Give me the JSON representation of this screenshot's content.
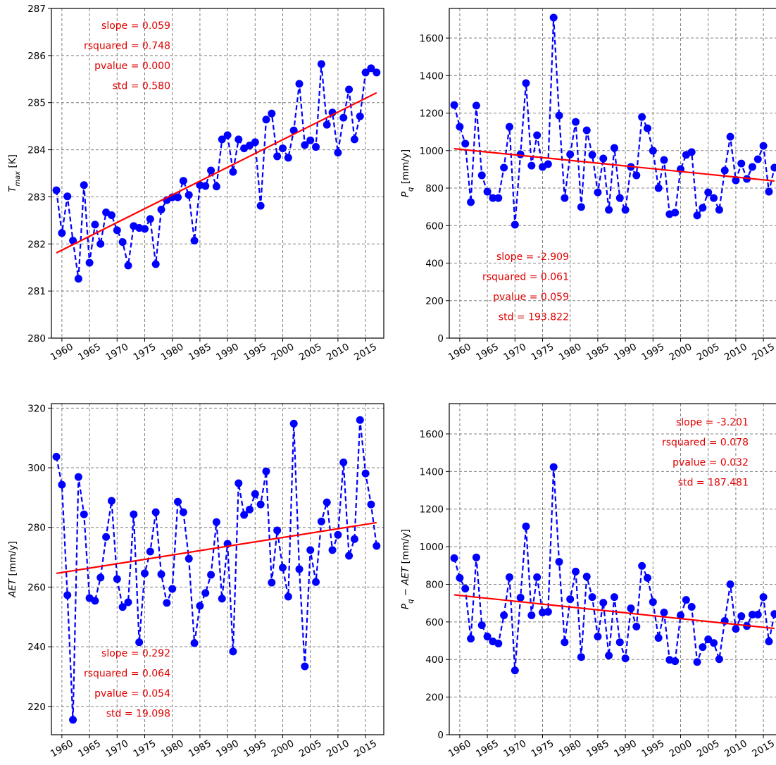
{
  "chart_data": [
    {
      "type": "line",
      "ylabel": [
        {
          "text": "T",
          "style": "italic"
        },
        {
          "text": "max",
          "style": "sub"
        },
        {
          "text": " [K]",
          "style": "normal"
        }
      ],
      "annotations": [
        "slope = 0.059",
        "rsquared = 0.748",
        "pvalue = 0.000",
        "std = 0.580"
      ],
      "x": [
        1959,
        1960,
        1961,
        1962,
        1963,
        1964,
        1965,
        1966,
        1967,
        1968,
        1969,
        1970,
        1971,
        1972,
        1973,
        1974,
        1975,
        1976,
        1977,
        1978,
        1979,
        1980,
        1981,
        1982,
        1983,
        1984,
        1985,
        1986,
        1987,
        1988,
        1989,
        1990,
        1991,
        1992,
        1993,
        1994,
        1995,
        1996,
        1997,
        1998,
        1999,
        2000,
        2001,
        2002,
        2003,
        2004,
        2005,
        2006,
        2007,
        2008,
        2009,
        2010,
        2011,
        2012,
        2013,
        2014,
        2015,
        2016,
        2017
      ],
      "series": [
        {
          "color": "#0000ff",
          "values": [
            283.14,
            282.23,
            283.01,
            282.07,
            281.26,
            283.25,
            281.6,
            282.41,
            282.0,
            282.67,
            282.61,
            282.29,
            282.04,
            281.54,
            282.38,
            282.34,
            282.32,
            282.53,
            281.57,
            282.73,
            282.93,
            282.99,
            282.99,
            283.34,
            283.04,
            282.07,
            283.25,
            283.23,
            283.56,
            283.22,
            284.22,
            284.31,
            283.53,
            284.22,
            284.03,
            284.09,
            284.16,
            282.81,
            284.64,
            284.77,
            283.86,
            284.03,
            283.83,
            284.41,
            285.4,
            284.1,
            284.2,
            284.06,
            285.82,
            284.53,
            284.79,
            283.94,
            284.68,
            285.28,
            284.22,
            284.71,
            285.64,
            285.73,
            285.64
          ]
        }
      ],
      "trend": {
        "color": "#ff0000",
        "x": [
          1959,
          2017
        ],
        "values": [
          281.81,
          285.21
        ]
      },
      "xlim": [
        1958.1,
        2018.3
      ],
      "xticks": [
        1960,
        1965,
        1970,
        1975,
        1980,
        1985,
        1990,
        1995,
        2000,
        2005,
        2010,
        2015
      ],
      "ylim": [
        280,
        287
      ],
      "yticks": [
        280,
        281,
        282,
        283,
        284,
        285,
        286,
        287
      ],
      "grid": true
    },
    {
      "type": "line",
      "ylabel": [
        {
          "text": "P",
          "style": "italic"
        },
        {
          "text": "q",
          "style": "sub"
        },
        {
          "text": " [mm/y]",
          "style": "normal"
        }
      ],
      "annotations": [
        "slope = -2.909",
        "rsquared = 0.061",
        "pvalue = 0.059",
        "std = 193.822"
      ],
      "x": [
        1959,
        1960,
        1961,
        1962,
        1963,
        1964,
        1965,
        1966,
        1967,
        1968,
        1969,
        1970,
        1971,
        1972,
        1973,
        1974,
        1975,
        1976,
        1977,
        1978,
        1979,
        1980,
        1981,
        1982,
        1983,
        1984,
        1985,
        1986,
        1987,
        1988,
        1989,
        1990,
        1991,
        1992,
        1993,
        1994,
        1995,
        1996,
        1997,
        1998,
        1999,
        2000,
        2001,
        2002,
        2003,
        2004,
        2005,
        2006,
        2007,
        2008,
        2009,
        2010,
        2011,
        2012,
        2013,
        2014,
        2015,
        2016,
        2017
      ],
      "series": [
        {
          "color": "#0000ff",
          "values": [
            1243,
            1127,
            1037,
            725,
            1240,
            868,
            781,
            747,
            747,
            909,
            1127,
            605,
            980,
            1360,
            920,
            1082,
            913,
            928,
            1709,
            1187,
            747,
            980,
            1153,
            699,
            1108,
            977,
            777,
            958,
            684,
            1014,
            747,
            684,
            913,
            868,
            1179,
            1119,
            999,
            800,
            950,
            661,
            669,
            901,
            977,
            992,
            654,
            695,
            777,
            747,
            684,
            894,
            1074,
            841,
            931,
            849,
            913,
            954,
            1025,
            781,
            909
          ]
        }
      ],
      "trend": {
        "color": "#ff0000",
        "x": [
          1959,
          2017
        ],
        "values": [
          1010,
          838
        ]
      },
      "xlim": [
        1958.1,
        2018.3
      ],
      "xticks": [
        1960,
        1965,
        1970,
        1975,
        1980,
        1985,
        1990,
        1995,
        2000,
        2005,
        2010,
        2015
      ],
      "ylim": [
        0,
        1758
      ],
      "yticks": [
        0,
        200,
        400,
        600,
        800,
        1000,
        1200,
        1400,
        1600
      ],
      "grid": true
    },
    {
      "type": "line",
      "ylabel": [
        {
          "text": "AET",
          "style": "italic"
        },
        {
          "text": " [mm/y]",
          "style": "normal"
        }
      ],
      "annotations": [
        "slope = 0.292",
        "rsquared = 0.064",
        "pvalue = 0.054",
        "std = 19.098"
      ],
      "x": [
        1959,
        1960,
        1961,
        1962,
        1963,
        1964,
        1965,
        1966,
        1967,
        1968,
        1969,
        1970,
        1971,
        1972,
        1973,
        1974,
        1975,
        1976,
        1977,
        1978,
        1979,
        1980,
        1981,
        1982,
        1983,
        1984,
        1985,
        1986,
        1987,
        1988,
        1989,
        1990,
        1991,
        1992,
        1993,
        1994,
        1995,
        1996,
        1997,
        1998,
        1999,
        2000,
        2001,
        2002,
        2003,
        2004,
        2005,
        2006,
        2007,
        2008,
        2009,
        2010,
        2011,
        2012,
        2013,
        2014,
        2015,
        2016,
        2017
      ],
      "series": [
        {
          "color": "#0000ff",
          "values": [
            303.7,
            294.3,
            257.3,
            215.5,
            296.9,
            284.4,
            256.3,
            255.4,
            263.2,
            276.8,
            288.9,
            262.7,
            253.3,
            254.9,
            284.4,
            241.5,
            264.6,
            271.9,
            285.1,
            264.3,
            254.7,
            259.4,
            288.6,
            285.1,
            269.5,
            241.2,
            253.7,
            258.0,
            264.1,
            281.8,
            256.1,
            274.5,
            238.4,
            294.8,
            284.2,
            286.0,
            291.2,
            287.7,
            298.8,
            261.5,
            279.0,
            266.5,
            256.8,
            314.8,
            266.0,
            233.4,
            272.4,
            261.7,
            282.0,
            288.4,
            272.4,
            277.5,
            301.8,
            270.5,
            276.1,
            316.0,
            298.1,
            287.7,
            273.8
          ]
        }
      ],
      "trend": {
        "color": "#ff0000",
        "x": [
          1959,
          2017
        ],
        "values": [
          264.6,
          281.6
        ]
      },
      "xlim": [
        1958.1,
        2018.3
      ],
      "xticks": [
        1960,
        1965,
        1970,
        1975,
        1980,
        1985,
        1990,
        1995,
        2000,
        2005,
        2010,
        2015
      ],
      "ylim": [
        210.5,
        321.5
      ],
      "yticks": [
        220,
        240,
        260,
        280,
        300,
        320
      ],
      "grid": true
    },
    {
      "type": "line",
      "ylabel": [
        {
          "text": "P",
          "style": "italic"
        },
        {
          "text": "q",
          "style": "sub"
        },
        {
          "text": " − ",
          "style": "normal"
        },
        {
          "text": "AET",
          "style": "italic"
        },
        {
          "text": " [mm/y]",
          "style": "normal"
        }
      ],
      "annotations": [
        "slope = -3.201",
        "rsquared = 0.078",
        "pvalue = 0.032",
        "std = 187.481"
      ],
      "x": [
        1959,
        1960,
        1961,
        1962,
        1963,
        1964,
        1965,
        1966,
        1967,
        1968,
        1969,
        1970,
        1971,
        1972,
        1973,
        1974,
        1975,
        1976,
        1977,
        1978,
        1979,
        1980,
        1981,
        1982,
        1983,
        1984,
        1985,
        1986,
        1987,
        1988,
        1989,
        1990,
        1991,
        1992,
        1993,
        1994,
        1995,
        1996,
        1997,
        1998,
        1999,
        2000,
        2001,
        2002,
        2003,
        2004,
        2005,
        2006,
        2007,
        2008,
        2009,
        2010,
        2011,
        2012,
        2013,
        2014,
        2015,
        2016,
        2017
      ],
      "series": [
        {
          "color": "#0000ff",
          "values": [
            939,
            834,
            777,
            511,
            943,
            582,
            522,
            496,
            485,
            635,
            838,
            342,
            729,
            1108,
            635,
            838,
            650,
            654,
            1424,
            920,
            492,
            721,
            868,
            413,
            841,
            732,
            522,
            702,
            421,
            732,
            492,
            406,
            672,
            575,
            898,
            834,
            706,
            515,
            650,
            398,
            391,
            635,
            717,
            680,
            387,
            466,
            507,
            488,
            402,
            605,
            800,
            563,
            631,
            578,
            639,
            639,
            732,
            496,
            642
          ]
        }
      ],
      "trend": {
        "color": "#ff0000",
        "x": [
          1959,
          2017
        ],
        "values": [
          744,
          565
        ]
      },
      "xlim": [
        1958.1,
        2018.3
      ],
      "xticks": [
        1960,
        1965,
        1970,
        1975,
        1980,
        1985,
        1990,
        1995,
        2000,
        2005,
        2010,
        2015
      ],
      "ylim": [
        0,
        1761
      ],
      "yticks": [
        0,
        200,
        400,
        600,
        800,
        1000,
        1200,
        1400,
        1600
      ],
      "grid": true
    }
  ]
}
